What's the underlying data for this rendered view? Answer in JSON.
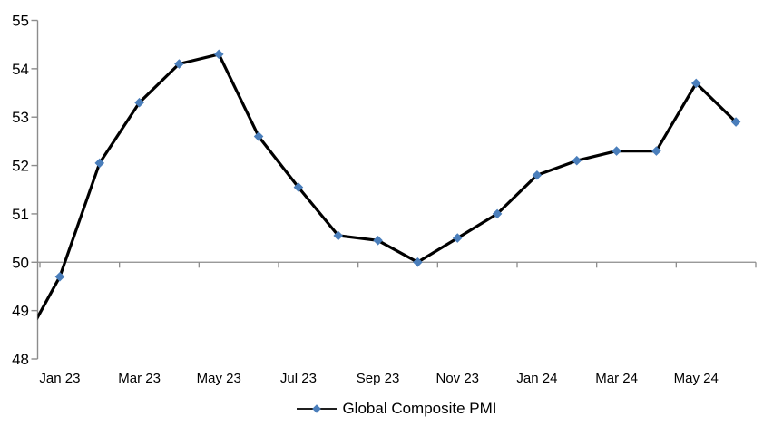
{
  "page": {
    "background": "#FFFFFF"
  },
  "chart": {
    "title": "",
    "legend": {
      "label": "Global Composite PMI",
      "position": "bottom-center",
      "swatch": "line-with-diamond-marker"
    }
  },
  "chart_data": {
    "type": "line",
    "title": "",
    "xlabel": "",
    "ylabel": "",
    "categories": [
      "Jan 23",
      "Feb 23",
      "Mar 23",
      "Apr 23",
      "May 23",
      "Jun 23",
      "Jul 23",
      "Aug 23",
      "Sep 23",
      "Oct 23",
      "Nov 23",
      "Dec 23",
      "Jan 24",
      "Feb 24",
      "Mar 24",
      "Apr 24",
      "May 24",
      "Jun 24"
    ],
    "series": [
      {
        "name": "Global Composite PMI",
        "values": [
          49.7,
          52.05,
          53.3,
          54.1,
          54.3,
          52.6,
          51.55,
          50.55,
          50.45,
          50.0,
          50.5,
          51.0,
          51.8,
          52.1,
          52.3,
          52.3,
          53.7,
          52.9
        ],
        "line_color": "#000000",
        "marker": "diamond",
        "marker_color": "#4A7EBB"
      }
    ],
    "lead_in_point": {
      "category": "Dec 22",
      "value": 48.2,
      "note": "line enters plot from left edge; its marker is clipped outside the plot area"
    },
    "ylim": [
      48,
      55
    ],
    "y_ticks": [
      48,
      49,
      50,
      51,
      52,
      53,
      54,
      55
    ],
    "x_tick_labels": [
      "Jan 23",
      "Mar 23",
      "May 23",
      "Jul 23",
      "Sep 23",
      "Nov 23",
      "Jan 24",
      "Mar 24",
      "May 24"
    ],
    "x_tick_interval_months": 2,
    "baseline_value": 50,
    "grid": "none",
    "legend_position": "bottom-center",
    "axis_color": "#8C8C8C",
    "text_color": "#000000"
  }
}
